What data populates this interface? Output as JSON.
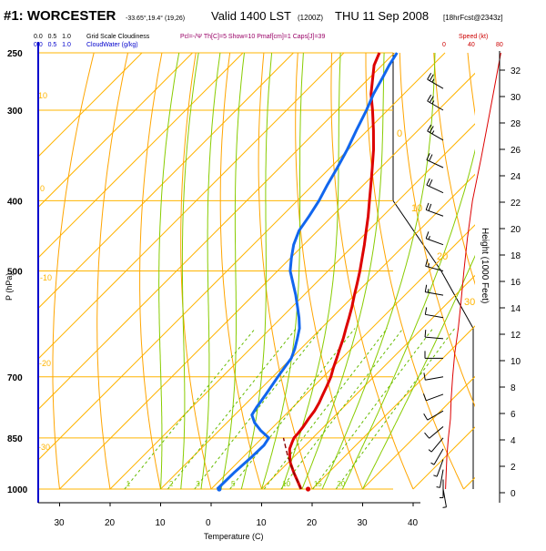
{
  "chart_data": {
    "type": "line",
    "title": "#1: WORCESTER",
    "location_coords": "-33.65°,19.4° (19,26)",
    "valid_label": "Valid 1400 LST",
    "valid_utc": "(1200Z)",
    "valid_date": "THU 11 Sep 2008",
    "forecast_label": "[18hrFcst@2343z]",
    "cloudiness_header": {
      "grid_scale_ticks": "0.0   0.5   1.0",
      "grid_scale_label": "Grid Scale Cloudiness",
      "cloudwater_ticks": "0.0   0.5   1.0",
      "cloudwater_label": "CloudWater (g/kg)"
    },
    "indices_text": "Pcl=-/Ψ Th[C]=5 Show=10 Pmaf[cm]=1 Caps[J]=39",
    "speed_header": {
      "label": "Speed (kt)",
      "ticks": [
        "0",
        "40",
        "80"
      ],
      "color": "#cc0000"
    },
    "xlabel": "Temperature (C)",
    "ylabel": "P (hPa)",
    "y2label": "Height (1000 Feet)",
    "xlim": [
      -30,
      45
    ],
    "ylim": [
      1000,
      250
    ],
    "x_ticks": [
      "30",
      "20",
      "10",
      "0",
      "10",
      "20",
      "30",
      "40"
    ],
    "x_tick_values": [
      -30,
      -20,
      -10,
      0,
      10,
      20,
      30,
      40
    ],
    "p_ticks": [
      "250",
      "300",
      "400",
      "500",
      "700",
      "850",
      "1000"
    ],
    "p_tick_values": [
      250,
      300,
      400,
      500,
      700,
      850,
      1000
    ],
    "height_ticks": [
      "32",
      "30",
      "28",
      "26",
      "24",
      "22",
      "20",
      "18",
      "16",
      "14",
      "12",
      "10",
      "8",
      "6",
      "4",
      "2",
      "0"
    ],
    "mixing_ratio_labels": [
      "1",
      "2",
      "3",
      "5",
      "10",
      "15",
      "20"
    ],
    "theta_labels": [
      "0",
      "10",
      "20",
      "30"
    ],
    "isotherm_labels": [
      "10",
      "0",
      "-10",
      "-20",
      "-30",
      "-40"
    ],
    "colors": {
      "temperature": "#dd0000",
      "dewpoint": "#1166ee",
      "parcel": "#880000",
      "isotherm": "#ffb400",
      "dry_adiabat": "#ffa500",
      "moist_adiabat": "#88cc00",
      "mixing_ratio": "#66bb00",
      "axis": "#0000cc"
    },
    "series": [
      {
        "name": "Temperature",
        "pressure": [
          1000,
          980,
          950,
          920,
          900,
          880,
          860,
          850,
          840,
          820,
          800,
          780,
          760,
          740,
          720,
          700,
          680,
          660,
          640,
          620,
          600,
          580,
          560,
          540,
          520,
          500,
          480,
          460,
          440,
          420,
          400,
          380,
          360,
          340,
          320,
          300,
          285,
          270,
          260,
          250
        ],
        "temperature": [
          17.8,
          16.0,
          13.2,
          10.5,
          9.0,
          7.6,
          6.7,
          6.3,
          6.2,
          5.9,
          5.4,
          5.0,
          4.3,
          3.4,
          2.5,
          1.5,
          0.2,
          -1.0,
          -2.3,
          -3.6,
          -5.1,
          -6.6,
          -8.2,
          -10.0,
          -11.8,
          -13.7,
          -15.8,
          -18.0,
          -20.4,
          -22.9,
          -25.7,
          -28.6,
          -31.7,
          -35.0,
          -38.8,
          -43.0,
          -46.5,
          -49.5,
          -51.6,
          -53.0
        ]
      },
      {
        "name": "Dewpoint",
        "pressure": [
          1000,
          950,
          900,
          870,
          850,
          830,
          810,
          790,
          770,
          740,
          700,
          680,
          660,
          640,
          620,
          600,
          580,
          560,
          540,
          520,
          500,
          480,
          460,
          440,
          420,
          400,
          380,
          360,
          340,
          320,
          300,
          285,
          270,
          260,
          250
        ],
        "temperature": [
          1.2,
          1.3,
          1.7,
          1.8,
          1.3,
          -1.8,
          -4.5,
          -6.6,
          -7.2,
          -7.9,
          -9.0,
          -9.5,
          -10.0,
          -11.2,
          -12.7,
          -14.3,
          -16.5,
          -19.0,
          -21.6,
          -24.5,
          -27.5,
          -29.8,
          -32.0,
          -33.7,
          -34.6,
          -35.7,
          -37.2,
          -38.6,
          -40.2,
          -42.2,
          -44.2,
          -46.0,
          -47.5,
          -48.6,
          -49.5
        ]
      },
      {
        "name": "Parcel",
        "pressure": [
          1000,
          950,
          900,
          850
        ],
        "temperature": [
          17.8,
          13.2,
          8.6,
          4.2
        ]
      }
    ],
    "surface_markers": {
      "temperature": 19.2,
      "dewpoint": 1.6
    },
    "wind_speed_profile": {
      "pressure": [
        1000,
        950,
        900,
        850,
        800,
        750,
        700,
        650,
        600,
        550,
        500,
        450,
        400,
        350,
        300,
        250
      ],
      "speed_kt": [
        2,
        3,
        4,
        6,
        9,
        10,
        12,
        15,
        20,
        24,
        28,
        33,
        40,
        52,
        65,
        80
      ]
    },
    "cloud_cover_edge": {
      "pressure": [
        1000,
        600,
        500,
        400,
        250
      ],
      "fraction": [
        1.0,
        1.0,
        0.6,
        0.0,
        0.0
      ]
    },
    "wind_barbs": {
      "pressure": [
        280,
        300,
        330,
        360,
        390,
        420,
        460,
        500,
        540,
        580,
        620,
        660,
        700,
        740,
        780,
        820,
        850,
        880,
        910,
        940,
        970,
        1000
      ],
      "direction_deg": [
        300,
        300,
        300,
        295,
        295,
        290,
        290,
        285,
        280,
        280,
        275,
        270,
        260,
        250,
        240,
        230,
        220,
        210,
        200,
        190,
        180,
        170
      ],
      "speed_kt": [
        25,
        25,
        25,
        20,
        20,
        20,
        15,
        15,
        15,
        10,
        10,
        10,
        10,
        10,
        10,
        10,
        5,
        5,
        5,
        5,
        5,
        5
      ]
    }
  }
}
